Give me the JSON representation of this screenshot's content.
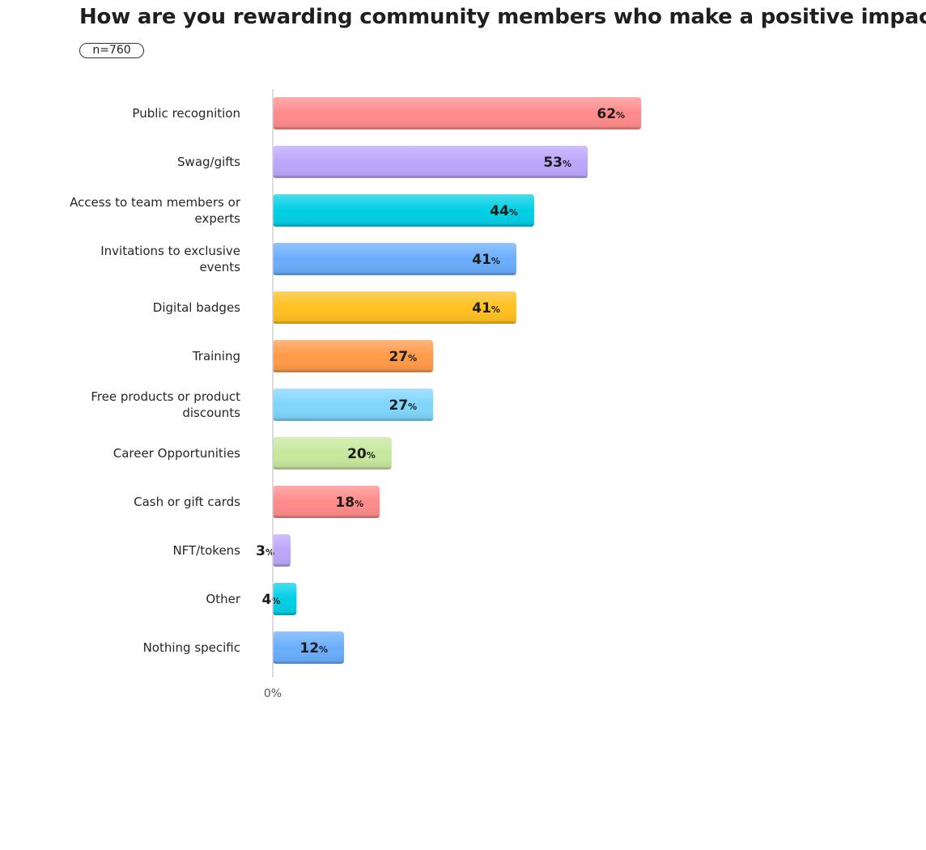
{
  "chart_data": {
    "type": "bar",
    "orientation": "horizontal",
    "title": "How are you rewarding community members who make a positive impact?",
    "sample_size": "n=760",
    "categories": [
      [
        "Public recognition"
      ],
      [
        "Swag/gifts"
      ],
      [
        "Access to team members or",
        "experts"
      ],
      [
        "Invitations to exclusive",
        "events"
      ],
      [
        "Digital badges"
      ],
      [
        "Training"
      ],
      [
        "Free products or product",
        "discounts"
      ],
      [
        "Career Opportunities"
      ],
      [
        "Cash or gift cards"
      ],
      [
        "NFT/tokens"
      ],
      [
        "Other"
      ],
      [
        "Nothing specific"
      ]
    ],
    "values": [
      62,
      53,
      44,
      41,
      41,
      27,
      27,
      20,
      18,
      3,
      4,
      12
    ],
    "value_unit": "%",
    "colors": [
      "#ff8a8a",
      "#bba6fb",
      "#00cfe4",
      "#69adfb",
      "#ffc01f",
      "#ff9a48",
      "#7fd5fd",
      "#c6e89d",
      "#ff8a8a",
      "#bba6fb",
      "#00cfe4",
      "#69adfb"
    ],
    "x_tick_label": "0%",
    "xlim": [
      0,
      100
    ],
    "grid": false,
    "legend": "none"
  }
}
